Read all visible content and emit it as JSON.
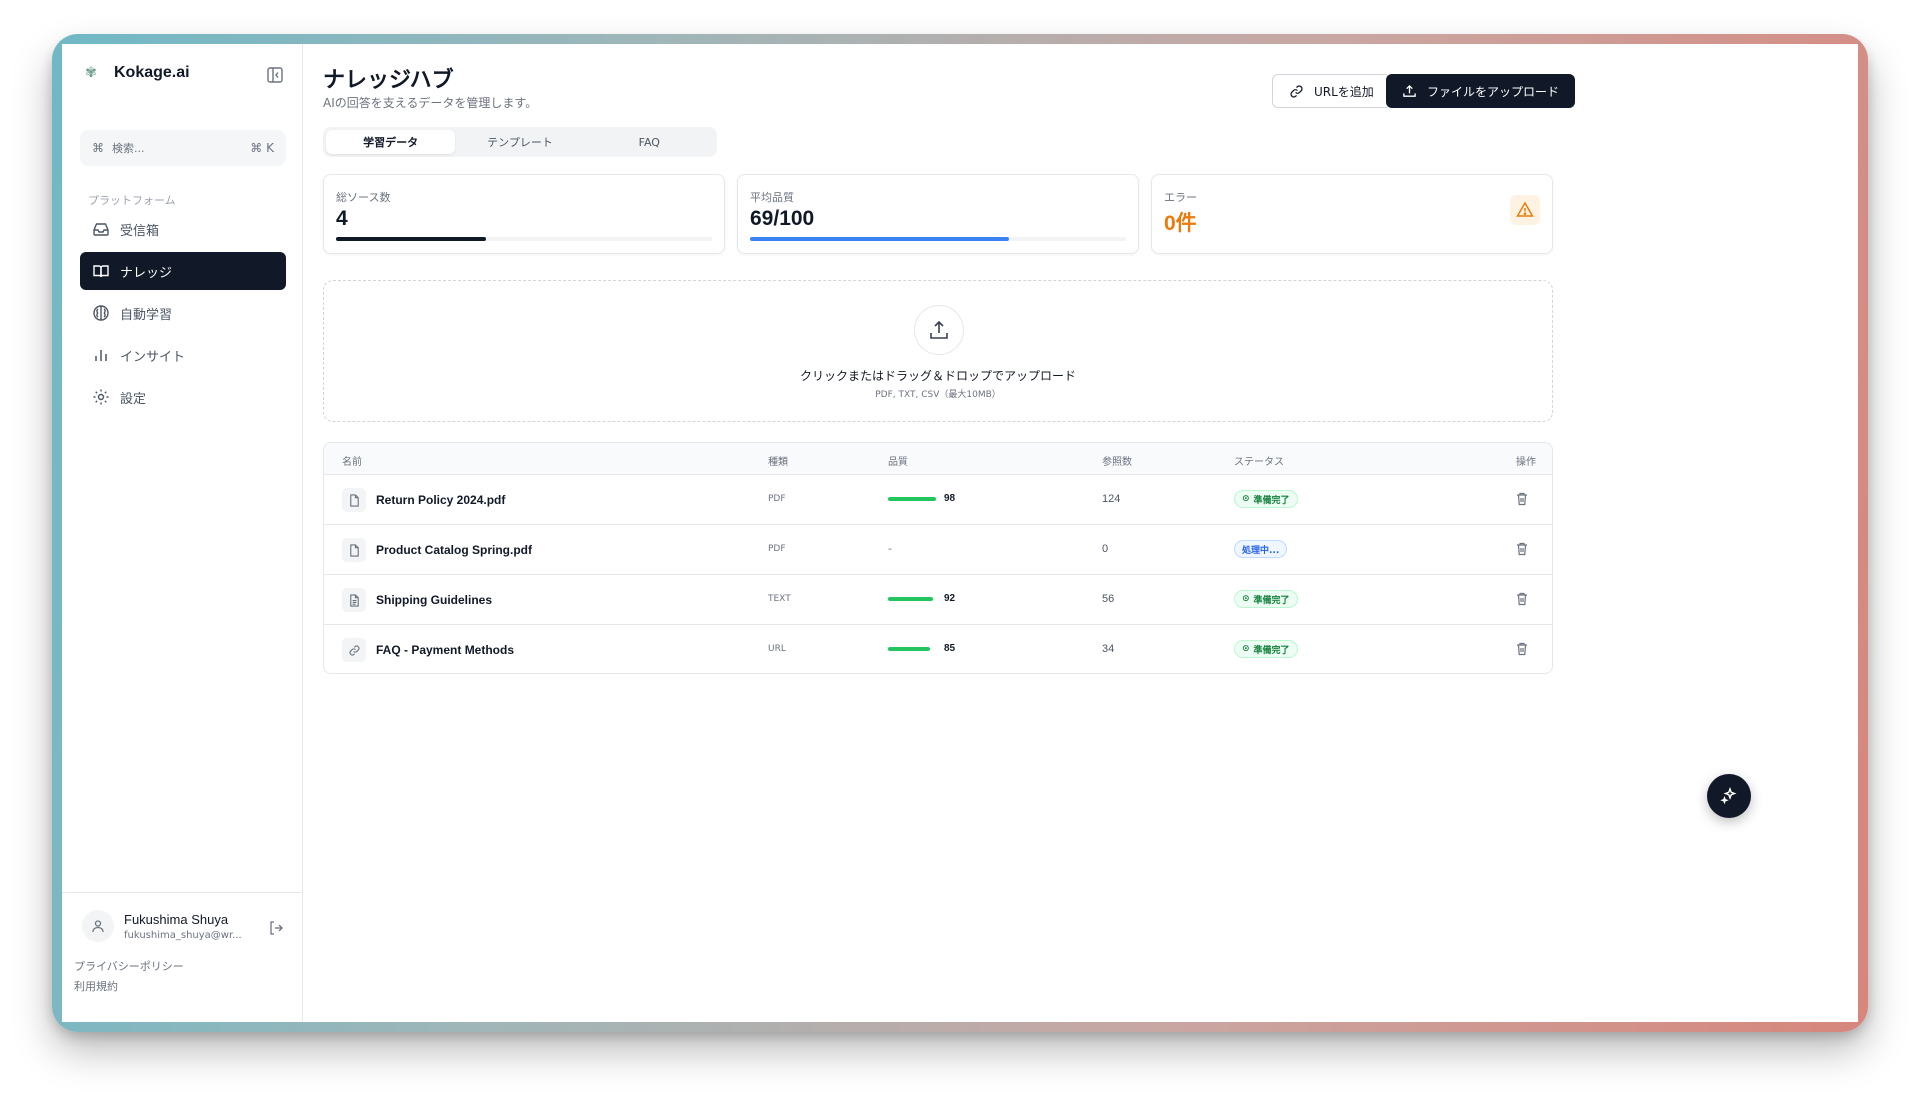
{
  "app": {
    "name": "Kokage.ai"
  },
  "search": {
    "placeholder": "検索...",
    "shortcut_symbol": "⌘",
    "shortcut": "K"
  },
  "sidebar": {
    "section_label": "プラットフォーム",
    "items": [
      {
        "label": "受信箱",
        "icon": "inbox-icon",
        "active": false
      },
      {
        "label": "ナレッジ",
        "icon": "book-icon",
        "active": true
      },
      {
        "label": "自動学習",
        "icon": "brain-icon",
        "active": false
      },
      {
        "label": "インサイト",
        "icon": "bar-chart-icon",
        "active": false
      },
      {
        "label": "設定",
        "icon": "gear-icon",
        "active": false
      }
    ],
    "user": {
      "name": "Fukushima Shuya",
      "email": "fukushima_shuya@wr..."
    },
    "links": {
      "privacy": "プライバシーポリシー",
      "terms": "利用規約"
    }
  },
  "header": {
    "title": "ナレッジハブ",
    "subtitle": "AIの回答を支えるデータを管理します。",
    "add_url_label": "URLを追加",
    "upload_label": "ファイルをアップロード"
  },
  "tabs": [
    {
      "label": "学習データ",
      "active": true
    },
    {
      "label": "テンプレート",
      "active": false
    },
    {
      "label": "FAQ",
      "active": false
    }
  ],
  "stats": {
    "sources": {
      "label": "総ソース数",
      "value": "4",
      "progress": 0.4,
      "color": "#111827"
    },
    "quality": {
      "label": "平均品質",
      "value": "69/100",
      "progress": 0.69,
      "color": "#3b82f6"
    },
    "errors": {
      "label": "エラー",
      "value": "0件",
      "color": "#ea7a0c"
    }
  },
  "upload_zone": {
    "title": "クリックまたはドラッグ＆ドロップでアップロード",
    "hint": "PDF, TXT, CSV（最大10MB）"
  },
  "table": {
    "columns": {
      "name": "名前",
      "type": "種類",
      "quality": "品質",
      "refs": "参照数",
      "status": "ステータス",
      "actions": "操作"
    },
    "rows": [
      {
        "name": "Return Policy 2024.pdf",
        "type": "PDF",
        "quality": "98",
        "quality_fraction": 0.98,
        "refs": "124",
        "status": "準備完了",
        "status_kind": "ready",
        "icon": "file-icon"
      },
      {
        "name": "Product Catalog Spring.pdf",
        "type": "PDF",
        "quality": "-",
        "quality_fraction": 0,
        "refs": "0",
        "status": "処理中...",
        "status_kind": "processing",
        "icon": "file-icon"
      },
      {
        "name": "Shipping Guidelines",
        "type": "TEXT",
        "quality": "92",
        "quality_fraction": 0.92,
        "refs": "56",
        "status": "準備完了",
        "status_kind": "ready",
        "icon": "file-text-icon"
      },
      {
        "name": "FAQ - Payment Methods",
        "type": "URL",
        "quality": "85",
        "quality_fraction": 0.85,
        "refs": "34",
        "status": "準備完了",
        "status_kind": "ready",
        "icon": "link-icon"
      }
    ]
  }
}
